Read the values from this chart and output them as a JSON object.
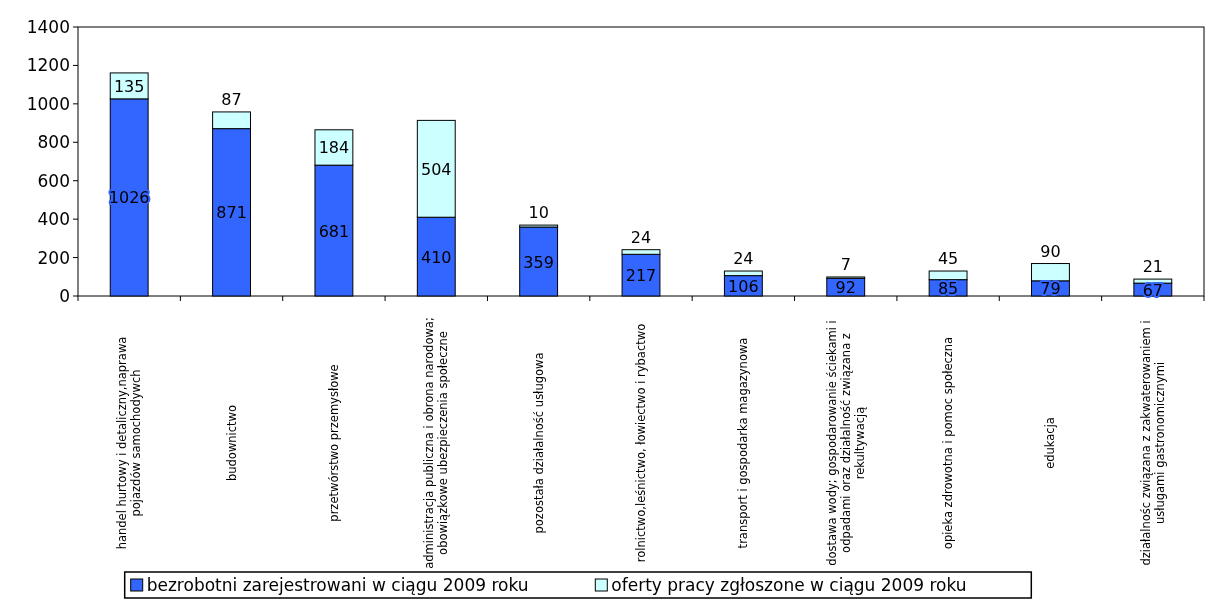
{
  "chart_data": {
    "type": "bar",
    "stacked": true,
    "categories": [
      "handel hurtowy i detaliczny,naprawa pojazdów samochodywch",
      "budownictwo",
      "przetwórstwo przemysłowe",
      "administracja publiczna i obrona narodowa; obowiązkowe ubezpieczenia społeczne",
      "pozostała działalność usługowa",
      "rolnictwo,leśnictwo, łowiectwo i rybactwo",
      "transport i gospodarka magazynowa",
      "dostawa wody; gospodarowanie ściekami i odpadami oraz działalność związana z rekultywacją",
      "opieka zdrowotna i pomoc społeczna",
      "edukacja",
      "działalnośc związana z zakwaterowaniem i usługami gastronomicznymi"
    ],
    "series": [
      {
        "name": "bezrobotni zarejestrowani w ciągu 2009 roku",
        "color": "#3366ff",
        "values": [
          1026,
          871,
          681,
          410,
          359,
          217,
          106,
          92,
          85,
          79,
          67
        ]
      },
      {
        "name": "oferty pracy zgłoszone w ciągu 2009 roku",
        "color": "#ccffff",
        "values": [
          135,
          87,
          184,
          504,
          10,
          24,
          24,
          7,
          45,
          90,
          21
        ]
      }
    ],
    "ylim": [
      0,
      1400
    ],
    "yticks": [
      0,
      200,
      400,
      600,
      800,
      1000,
      1200,
      1400
    ],
    "data_labels": true,
    "legend": "bottom",
    "grid": false
  }
}
